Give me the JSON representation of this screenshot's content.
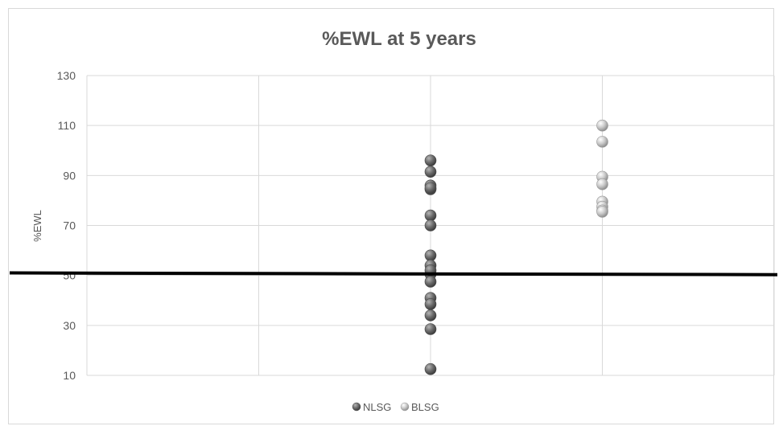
{
  "chart_data": {
    "type": "scatter",
    "title": "%EWL at 5 years",
    "xlabel": "",
    "ylabel": "%EWL",
    "ylim": [
      10,
      130
    ],
    "yticks": [
      10,
      30,
      50,
      70,
      90,
      110,
      130
    ],
    "xlim": [
      0,
      4
    ],
    "grid": true,
    "legend_position": "bottom",
    "threshold_line": {
      "y_left": 51,
      "y_right": 50.3,
      "color": "#000000"
    },
    "series": [
      {
        "name": "NLSG",
        "color": "#6b6b6b",
        "x": [
          2,
          2,
          2,
          2,
          2,
          2,
          2,
          2,
          2,
          2,
          2,
          2,
          2,
          2,
          2,
          2,
          2
        ],
        "y": [
          96,
          91.5,
          86,
          84.5,
          74,
          70,
          58,
          54,
          50.5,
          47.5,
          41,
          38.5,
          34,
          28.5,
          12.5,
          85,
          52
        ]
      },
      {
        "name": "BLSG",
        "color": "#bdbdbd",
        "x": [
          3,
          3,
          3,
          3,
          3,
          3,
          3,
          3
        ],
        "y": [
          110,
          103.5,
          89.5,
          86.5,
          79.5,
          77.5,
          76,
          75.5
        ]
      }
    ]
  }
}
